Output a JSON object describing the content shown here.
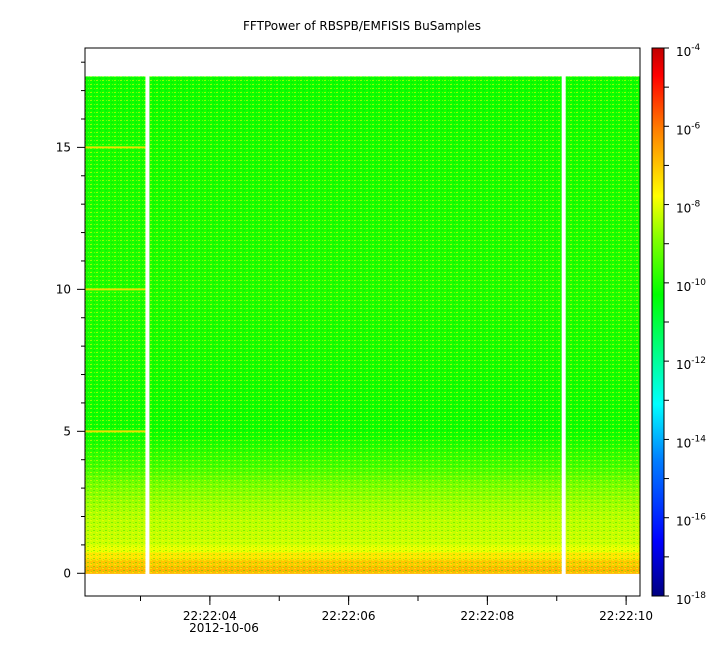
{
  "chart_data": {
    "type": "heatmap",
    "title": "FFTPower of RBSPB/EMFISIS  BuSamples",
    "xlabel": "",
    "ylabel": "",
    "x_ticks": [
      "22:22:04",
      "22:22:06",
      "22:22:08",
      "22:22:10"
    ],
    "x_date_label": "2012-10-06",
    "x_range_seconds": [
      2.2,
      10.2
    ],
    "y_ticks": [
      0,
      5,
      10,
      15
    ],
    "ylim": [
      -0.8,
      18.5
    ],
    "data_extent": {
      "y_min": 0,
      "y_max": 17.5
    },
    "colorbar": {
      "scale": "log",
      "range": [
        1e-18,
        0.0001
      ],
      "ticks": [
        "10^-18",
        "10^-16",
        "10^-14",
        "10^-12",
        "10^-10",
        "10^-8",
        "10^-6",
        "10^-4"
      ],
      "colormap": [
        "#000080",
        "#0000ff",
        "#0080ff",
        "#00ffff",
        "#00ff80",
        "#00ff00",
        "#80ff00",
        "#ffff00",
        "#ff8000",
        "#ff0000",
        "#c00000"
      ]
    },
    "power_profile": {
      "frequency": [
        0.2,
        0.5,
        1.0,
        2.0,
        3.0,
        3.8,
        5,
        10,
        15,
        17.5
      ],
      "log10_power": [
        -6.8,
        -7.2,
        -8.2,
        -8.4,
        -8.9,
        -9.6,
        -10.2,
        -10.0,
        -10.1,
        -10.2
      ]
    },
    "data_gaps_seconds": [
      3.1,
      9.1
    ],
    "line_features_frequency": [
      5,
      10,
      15
    ]
  }
}
